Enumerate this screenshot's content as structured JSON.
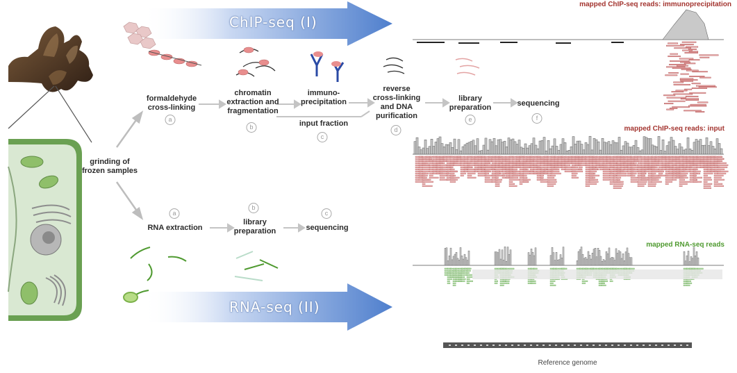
{
  "banners": {
    "chip": "ChIP-seq (I)",
    "rna": "RNA-seq (II)"
  },
  "grinding_label": "grinding of\nfrozen samples",
  "chip_steps": [
    {
      "label": "formaldehyde\ncross-linking",
      "marker": "a"
    },
    {
      "label": "chromatin\nextraction and\nfragmentation",
      "marker": "b"
    },
    {
      "label": "immuno-\nprecipitation",
      "marker": "c"
    },
    {
      "label": "reverse\ncross-linking\nand DNA\npurification",
      "marker": "d"
    },
    {
      "label": "library\npreparation",
      "marker": "e"
    },
    {
      "label": "sequencing",
      "marker": "f"
    }
  ],
  "input_fraction_label": "input fraction",
  "rna_steps": [
    {
      "label": "RNA extraction",
      "marker": "a"
    },
    {
      "label": "library\npreparation",
      "marker": "b"
    },
    {
      "label": "sequencing",
      "marker": "c"
    }
  ],
  "tracks": {
    "ip_title": "mapped ChIP-seq reads: immunoprecipitation",
    "input_title": "mapped ChIP-seq reads: input",
    "rna_title": "mapped RNA-seq reads",
    "reference_label": "Reference genome"
  },
  "colors": {
    "banner_blue": "#5a86d0",
    "chip_title": "#a3342f",
    "rna_title": "#4f9a30",
    "ip_reads": "#e8a5a5",
    "rna_reads": "#a9d59b",
    "coverage_grey": "#8a8a8a",
    "cell_wall": "#5f9a4a",
    "cell_fill": "#bfd4b4"
  }
}
